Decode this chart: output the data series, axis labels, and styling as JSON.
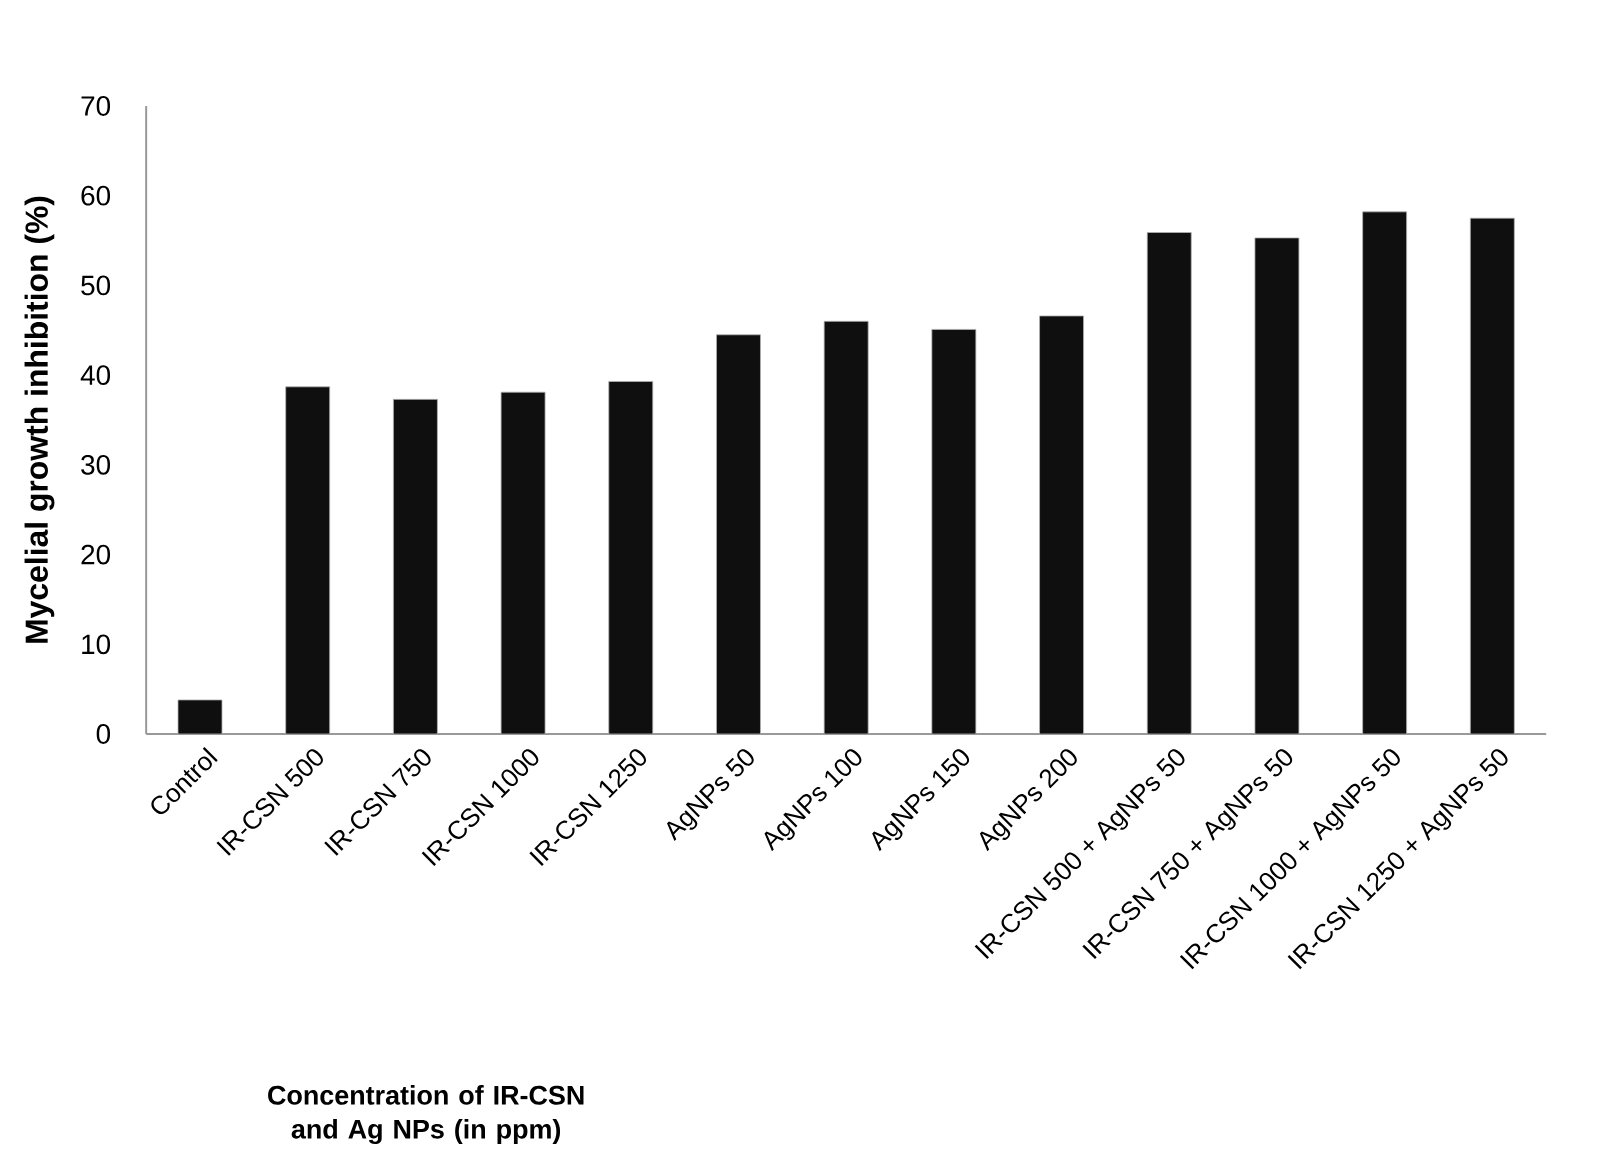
{
  "chart_data": {
    "type": "bar",
    "xlabel": "Concentration of IR-CSN and Ag NPs (in ppm)",
    "ylabel": "Mycelial growth inhibition (%)",
    "categories": [
      "Control",
      "IR-CSN 500",
      "IR-CSN 750",
      "IR-CSN 1000",
      "IR-CSN 1250",
      "AgNPs 50",
      "AgNPs 100",
      "AgNPs 150",
      "AgNPs 200",
      "IR-CSN 500 + AgNPs 50",
      "IR-CSN 750 + AgNPs 50",
      "IR-CSN 1000 + AgNPs 50",
      "IR-CSN 1250 + AgNPs 50"
    ],
    "values": [
      3.8,
      38.7,
      37.3,
      38.1,
      39.3,
      44.5,
      46.0,
      45.1,
      46.6,
      55.9,
      55.3,
      58.2,
      57.5
    ],
    "color": "#0f0f0f",
    "ylim": [
      0,
      70
    ],
    "yticks": [
      0,
      10,
      20,
      30,
      40,
      50,
      60,
      70
    ],
    "grid": false
  }
}
